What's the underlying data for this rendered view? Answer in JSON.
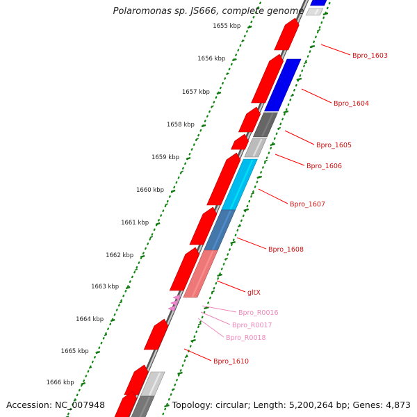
{
  "title": "Polaromonas sp. JS666, complete genome",
  "footer": {
    "accession": "Accession: NC_007948",
    "topology": "Topology: circular; Length: 5,200,264 bp; Genes: 4,873"
  },
  "ruler_labels": [
    "1655 kbp",
    "1656 kbp",
    "1657 kbp",
    "1658 kbp",
    "1659 kbp",
    "1660 kbp",
    "1661 kbp",
    "1662 kbp",
    "1663 kbp",
    "1664 kbp",
    "1665 kbp",
    "1666 kbp"
  ],
  "gene_labels": [
    "Bpro_1603",
    "Bpro_1604",
    "Bpro_1605",
    "Bpro_1606",
    "Bpro_1607",
    "Bpro_1608",
    "gltX",
    "Bpro_R0016",
    "Bpro_R0017",
    "Bpro_R0018",
    "Bpro_1610"
  ],
  "colors": {
    "forward_cds": "#ff0000",
    "label_line": "#ff0000",
    "rna_label": "#ee88bb",
    "ruler_dots": "#118811",
    "ruler_ticks": "#117711",
    "backbone": "#888888",
    "gene_1604": "#0000ee",
    "gene_1605": "#666666",
    "gene_1606": "#bbbbbb",
    "gene_1607": "#00bbee",
    "gene_1608": "#4477aa",
    "gene_gltX": "#ee7777"
  }
}
